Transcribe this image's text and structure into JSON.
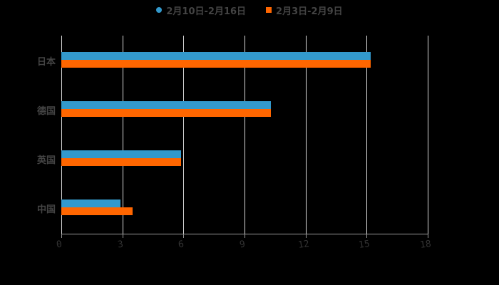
{
  "chart_data": {
    "type": "bar",
    "orientation": "horizontal",
    "title": "",
    "xlabel": "",
    "ylabel": "",
    "categories": [
      "日本",
      "德国",
      "英国",
      "中国"
    ],
    "series": [
      {
        "name": "2月10日-2月16日",
        "color": "#3399cc",
        "values": [
          15.2,
          10.3,
          5.9,
          2.9
        ]
      },
      {
        "name": "2月3日-2月9日",
        "color": "#ff6600",
        "values": [
          15.2,
          10.3,
          5.9,
          3.5
        ]
      }
    ],
    "xlim": [
      0,
      18
    ],
    "xticks": [
      "0",
      "3",
      "6",
      "9",
      "12",
      "15",
      "18"
    ],
    "grid": true,
    "legend_position": "top"
  },
  "legend": {
    "items": [
      {
        "label": "2月10日-2月16日",
        "color": "#3399cc",
        "shape": "circle"
      },
      {
        "label": "2月3日-2月9日",
        "color": "#ff6600",
        "shape": "square"
      }
    ]
  }
}
